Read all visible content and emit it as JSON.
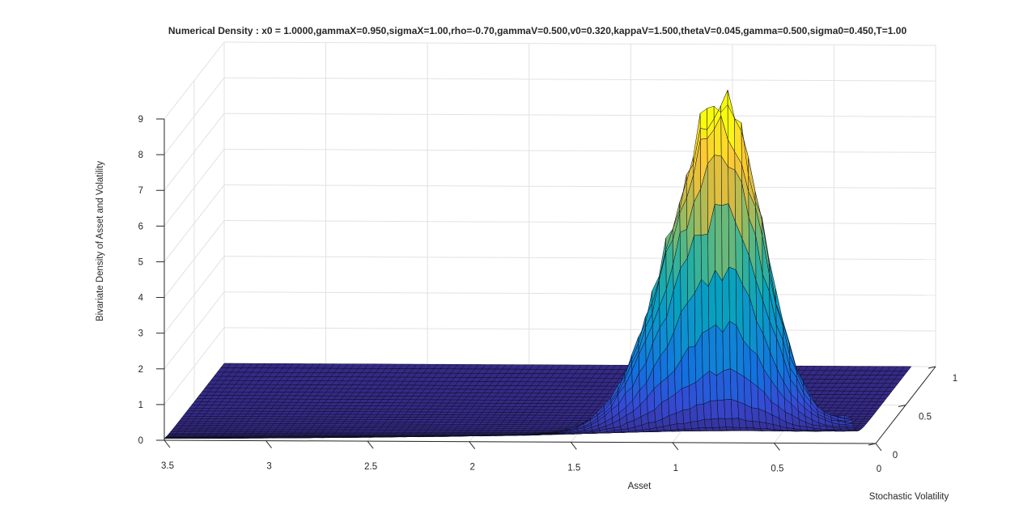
{
  "chart_data": {
    "type": "surface",
    "title": "Numerical Density : x0 = 1.0000,gammaX=0.950,sigmaX=1.00,rho=-0.70,gammaV=0.500,v0=0.320,kappaV=1.500,thetaV=0.045,gamma=0.500,sigma0=0.450,T=1.00",
    "xlabel": "Asset",
    "ylabel": "Stochastic Volatility",
    "zlabel": "Bivariate Density of Asset and Volatility",
    "xlim": [
      0,
      3.5
    ],
    "ylim": [
      0,
      1
    ],
    "zlim": [
      0,
      9
    ],
    "x_ticks": [
      "0",
      "0.5",
      "1",
      "1.5",
      "2",
      "2.5",
      "3",
      "3.5"
    ],
    "y_ticks": [
      "0",
      "0.5",
      "1"
    ],
    "z_ticks": [
      "0",
      "1",
      "2",
      "3",
      "4",
      "5",
      "6",
      "7",
      "8",
      "9"
    ],
    "x_direction": "reversed",
    "grid": true,
    "colormap": "parula",
    "peak": {
      "asset": 0.75,
      "volatility": 0.02,
      "density": 9.2
    },
    "density_samples": [
      {
        "asset": 0.0,
        "volatility": 0.0,
        "density": 0.4
      },
      {
        "asset": 0.25,
        "volatility": 0.0,
        "density": 2.6
      },
      {
        "asset": 0.5,
        "volatility": 0.0,
        "density": 6.5
      },
      {
        "asset": 0.75,
        "volatility": 0.0,
        "density": 9.2
      },
      {
        "asset": 1.0,
        "volatility": 0.0,
        "density": 6.6
      },
      {
        "asset": 1.25,
        "volatility": 0.0,
        "density": 3.0
      },
      {
        "asset": 1.5,
        "volatility": 0.0,
        "density": 1.1
      },
      {
        "asset": 2.0,
        "volatility": 0.0,
        "density": 0.25
      },
      {
        "asset": 2.5,
        "volatility": 0.0,
        "density": 0.1
      },
      {
        "asset": 3.0,
        "volatility": 0.0,
        "density": 0.05
      },
      {
        "asset": 0.75,
        "volatility": 0.5,
        "density": 0.3
      },
      {
        "asset": 0.75,
        "volatility": 1.0,
        "density": 0.0
      }
    ]
  }
}
